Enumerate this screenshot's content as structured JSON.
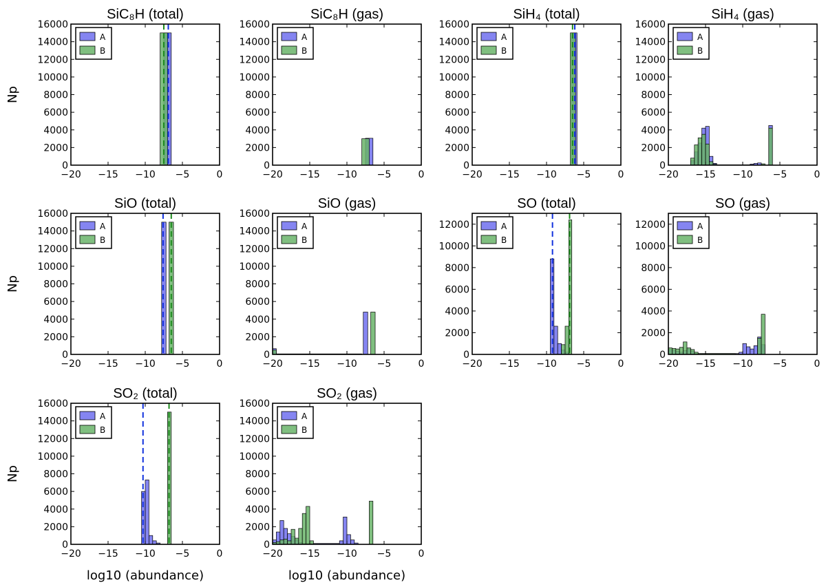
{
  "colors": {
    "A": "#7070ee",
    "B": "#6ab46a",
    "A_line": "#1030dd",
    "B_line": "#1c8a1c"
  },
  "figure": {
    "ylabel": "Np",
    "xlabel": "log10 (abundance)"
  },
  "chart_data": [
    {
      "type": "bar",
      "title": "SiC₈H (total)",
      "xlim": [
        -20,
        0
      ],
      "ylim": [
        0,
        16000
      ],
      "xticks": [
        -20,
        -15,
        -10,
        -5,
        0
      ],
      "yticks": [
        0,
        2000,
        4000,
        6000,
        8000,
        10000,
        12000,
        14000,
        16000
      ],
      "legend": [
        "A",
        "B"
      ],
      "legend_position": "top-left",
      "series": [
        {
          "name": "A",
          "bins": [
            [
              -7.5,
              -6.5,
              15000
            ]
          ]
        },
        {
          "name": "B",
          "bins": [
            [
              -8.0,
              -7.0,
              15000
            ]
          ]
        }
      ],
      "vlines": [
        {
          "series": "A",
          "x": -6.9
        },
        {
          "series": "B",
          "x": -7.5
        }
      ]
    },
    {
      "type": "bar",
      "title": "SiC₈H (gas)",
      "xlim": [
        -20,
        0
      ],
      "ylim": [
        0,
        16000
      ],
      "xticks": [
        -20,
        -15,
        -10,
        -5,
        0
      ],
      "yticks": [
        0,
        2000,
        4000,
        6000,
        8000,
        10000,
        12000,
        14000,
        16000
      ],
      "legend": [
        "A",
        "B"
      ],
      "legend_position": "top-left",
      "series": [
        {
          "name": "A",
          "bins": [
            [
              -7.5,
              -6.5,
              3050
            ]
          ]
        },
        {
          "name": "B",
          "bins": [
            [
              -8.0,
              -7.0,
              3000
            ]
          ]
        }
      ],
      "vlines": []
    },
    {
      "type": "bar",
      "title": "SiH₄ (total)",
      "xlim": [
        -20,
        0
      ],
      "ylim": [
        0,
        16000
      ],
      "xticks": [
        -20,
        -15,
        -10,
        -5,
        0
      ],
      "yticks": [
        0,
        2000,
        4000,
        6000,
        8000,
        10000,
        12000,
        14000,
        16000
      ],
      "legend": [
        "A",
        "B"
      ],
      "legend_position": "top-left",
      "series": [
        {
          "name": "A",
          "bins": [
            [
              -6.6,
              -5.9,
              15000
            ]
          ]
        },
        {
          "name": "B",
          "bins": [
            [
              -6.8,
              -6.1,
              15000
            ]
          ]
        }
      ],
      "vlines": [
        {
          "series": "A",
          "x": -6.2
        },
        {
          "series": "B",
          "x": -6.5
        }
      ]
    },
    {
      "type": "bar",
      "title": "SiH₄ (gas)",
      "xlim": [
        -20,
        0
      ],
      "ylim": [
        0,
        16000
      ],
      "xticks": [
        -20,
        -15,
        -10,
        -5,
        0
      ],
      "yticks": [
        0,
        2000,
        4000,
        6000,
        8000,
        10000,
        12000,
        14000,
        16000
      ],
      "legend": [
        "A",
        "B"
      ],
      "legend_position": "top-left",
      "series": [
        {
          "name": "A",
          "bins": [
            [
              -17,
              -16.5,
              500
            ],
            [
              -16.5,
              -16,
              1500
            ],
            [
              -16,
              -15.5,
              2500
            ],
            [
              -15.5,
              -15,
              4200
            ],
            [
              -15,
              -14.5,
              4400
            ],
            [
              -14.5,
              -14,
              1000
            ],
            [
              -14,
              -13.5,
              200
            ],
            [
              -13.5,
              -9,
              40
            ],
            [
              -9,
              -8.5,
              120
            ],
            [
              -8.5,
              -8,
              200
            ],
            [
              -8,
              -7.5,
              250
            ],
            [
              -6.5,
              -6,
              4500
            ]
          ]
        },
        {
          "name": "B",
          "bins": [
            [
              -17,
              -16.5,
              800
            ],
            [
              -16.5,
              -16,
              2300
            ],
            [
              -16,
              -15.5,
              3100
            ],
            [
              -15.5,
              -15,
              3500
            ],
            [
              -15,
              -14.5,
              2400
            ],
            [
              -14.5,
              -14,
              400
            ],
            [
              -14,
              -13.5,
              100
            ],
            [
              -7.5,
              -7,
              150
            ],
            [
              -6.5,
              -6,
              4200
            ]
          ]
        }
      ],
      "vlines": []
    },
    {
      "type": "bar",
      "title": "SiO (total)",
      "xlim": [
        -20,
        0
      ],
      "ylim": [
        0,
        16000
      ],
      "xticks": [
        -20,
        -15,
        -10,
        -5,
        0
      ],
      "yticks": [
        0,
        2000,
        4000,
        6000,
        8000,
        10000,
        12000,
        14000,
        16000
      ],
      "legend": [
        "A",
        "B"
      ],
      "legend_position": "top-left",
      "series": [
        {
          "name": "A",
          "bins": [
            [
              -7.8,
              -7.2,
              15000
            ]
          ]
        },
        {
          "name": "B",
          "bins": [
            [
              -6.8,
              -6.2,
              15000
            ]
          ]
        }
      ],
      "vlines": [
        {
          "series": "A",
          "x": -7.6
        },
        {
          "series": "B",
          "x": -6.5
        }
      ]
    },
    {
      "type": "bar",
      "title": "SiO (gas)",
      "xlim": [
        -20,
        0
      ],
      "ylim": [
        0,
        16000
      ],
      "xticks": [
        -20,
        -15,
        -10,
        -5,
        0
      ],
      "yticks": [
        0,
        2000,
        4000,
        6000,
        8000,
        10000,
        12000,
        14000,
        16000
      ],
      "legend": [
        "A",
        "B"
      ],
      "legend_position": "top-left",
      "series": [
        {
          "name": "A",
          "bins": [
            [
              -20,
              -19.5,
              650
            ],
            [
              -19.5,
              -8,
              60
            ],
            [
              -7.8,
              -7.2,
              4800
            ]
          ]
        },
        {
          "name": "B",
          "bins": [
            [
              -20,
              -19.5,
              500
            ],
            [
              -19.5,
              -17,
              50
            ],
            [
              -6.8,
              -6.2,
              4800
            ]
          ]
        }
      ],
      "vlines": []
    },
    {
      "type": "bar",
      "title": "SO (total)",
      "xlim": [
        -20,
        0
      ],
      "ylim": [
        0,
        13000
      ],
      "xticks": [
        -20,
        -15,
        -10,
        -5,
        0
      ],
      "yticks": [
        0,
        2000,
        4000,
        6000,
        8000,
        10000,
        12000
      ],
      "legend": [
        "A",
        "B"
      ],
      "legend_position": "top-left",
      "series": [
        {
          "name": "A",
          "bins": [
            [
              -9.5,
              -9,
              8800
            ],
            [
              -9,
              -8.5,
              2600
            ],
            [
              -8.5,
              -8,
              1000
            ],
            [
              -8,
              -7.5,
              400
            ],
            [
              -7.5,
              -7,
              200
            ]
          ]
        },
        {
          "name": "B",
          "bins": [
            [
              -8,
              -7.5,
              900
            ],
            [
              -7.5,
              -7,
              2600
            ],
            [
              -7,
              -6.6,
              12400
            ]
          ]
        }
      ],
      "vlines": [
        {
          "series": "A",
          "x": -9.2
        },
        {
          "series": "B",
          "x": -6.9
        }
      ]
    },
    {
      "type": "bar",
      "title": "SO (gas)",
      "xlim": [
        -20,
        0
      ],
      "ylim": [
        0,
        13000
      ],
      "xticks": [
        -20,
        -15,
        -10,
        -5,
        0
      ],
      "yticks": [
        0,
        2000,
        4000,
        6000,
        8000,
        10000,
        12000
      ],
      "legend": [
        "A",
        "B"
      ],
      "legend_position": "top-left",
      "series": [
        {
          "name": "A",
          "bins": [
            [
              -20,
              -19.5,
              450
            ],
            [
              -19.5,
              -19,
              400
            ],
            [
              -19,
              -18.5,
              300
            ],
            [
              -18.5,
              -18,
              200
            ],
            [
              -18,
              -17.5,
              350
            ],
            [
              -17.5,
              -17,
              500
            ],
            [
              -17,
              -16.5,
              300
            ],
            [
              -16.5,
              -10.5,
              80
            ],
            [
              -10.5,
              -10,
              200
            ],
            [
              -10,
              -9.5,
              1000
            ],
            [
              -9.5,
              -9,
              700
            ],
            [
              -9,
              -8.5,
              500
            ],
            [
              -8.5,
              -8,
              800
            ],
            [
              -8,
              -7.5,
              1600
            ],
            [
              -7.5,
              -7,
              900
            ]
          ]
        },
        {
          "name": "B",
          "bins": [
            [
              -20,
              -19.5,
              600
            ],
            [
              -19.5,
              -19,
              550
            ],
            [
              -19,
              -18.5,
              500
            ],
            [
              -18.5,
              -18,
              650
            ],
            [
              -18,
              -17.5,
              1150
            ],
            [
              -17.5,
              -17,
              600
            ],
            [
              -17,
              -16.5,
              450
            ],
            [
              -16.5,
              -16,
              200
            ],
            [
              -16,
              -11,
              80
            ],
            [
              -8,
              -7.5,
              1500
            ],
            [
              -7.5,
              -7,
              3700
            ]
          ]
        }
      ],
      "vlines": []
    },
    {
      "type": "bar",
      "title": "SO₂ (total)",
      "xlim": [
        -20,
        0
      ],
      "ylim": [
        0,
        16000
      ],
      "xticks": [
        -20,
        -15,
        -10,
        -5,
        0
      ],
      "yticks": [
        0,
        2000,
        4000,
        6000,
        8000,
        10000,
        12000,
        14000,
        16000
      ],
      "legend": [
        "A",
        "B"
      ],
      "legend_position": "top-left",
      "series": [
        {
          "name": "A",
          "bins": [
            [
              -10.5,
              -10,
              6000
            ],
            [
              -10,
              -9.5,
              7300
            ],
            [
              -9.5,
              -9,
              1000
            ],
            [
              -9,
              -8.5,
              400
            ],
            [
              -8.5,
              -8,
              150
            ]
          ]
        },
        {
          "name": "B",
          "bins": [
            [
              -7,
              -6.5,
              15000
            ]
          ]
        }
      ],
      "vlines": [
        {
          "series": "A",
          "x": -10.3
        },
        {
          "series": "B",
          "x": -6.8
        }
      ]
    },
    {
      "type": "bar",
      "title": "SO₂ (gas)",
      "xlim": [
        -20,
        0
      ],
      "ylim": [
        0,
        16000
      ],
      "xticks": [
        -20,
        -15,
        -10,
        -5,
        0
      ],
      "yticks": [
        0,
        2000,
        4000,
        6000,
        8000,
        10000,
        12000,
        14000,
        16000
      ],
      "legend": [
        "A",
        "B"
      ],
      "legend_position": "top-left",
      "series": [
        {
          "name": "A",
          "bins": [
            [
              -20,
              -19.5,
              500
            ],
            [
              -19.5,
              -19,
              1400
            ],
            [
              -19,
              -18.5,
              2700
            ],
            [
              -18.5,
              -18,
              1800
            ],
            [
              -18,
              -17.5,
              1200
            ],
            [
              -17.5,
              -17,
              900
            ],
            [
              -17,
              -16.5,
              500
            ],
            [
              -16.5,
              -16,
              200
            ],
            [
              -16,
              -11,
              100
            ],
            [
              -11,
              -10.5,
              400
            ],
            [
              -10.5,
              -10,
              3100
            ],
            [
              -10,
              -9.5,
              1100
            ],
            [
              -9.5,
              -9,
              500
            ],
            [
              -9,
              -8.5,
              150
            ]
          ]
        },
        {
          "name": "B",
          "bins": [
            [
              -20,
              -19.5,
              200
            ],
            [
              -19.5,
              -19,
              300
            ],
            [
              -19,
              -18.5,
              500
            ],
            [
              -18.5,
              -18,
              600
            ],
            [
              -18,
              -17.5,
              400
            ],
            [
              -17.5,
              -17,
              1700
            ],
            [
              -17,
              -16.5,
              700
            ],
            [
              -16.5,
              -16,
              1800
            ],
            [
              -16,
              -15.5,
              3500
            ],
            [
              -15.5,
              -15,
              4300
            ],
            [
              -15,
              -14.5,
              400
            ],
            [
              -7,
              -6.5,
              4900
            ]
          ]
        }
      ],
      "vlines": []
    }
  ]
}
